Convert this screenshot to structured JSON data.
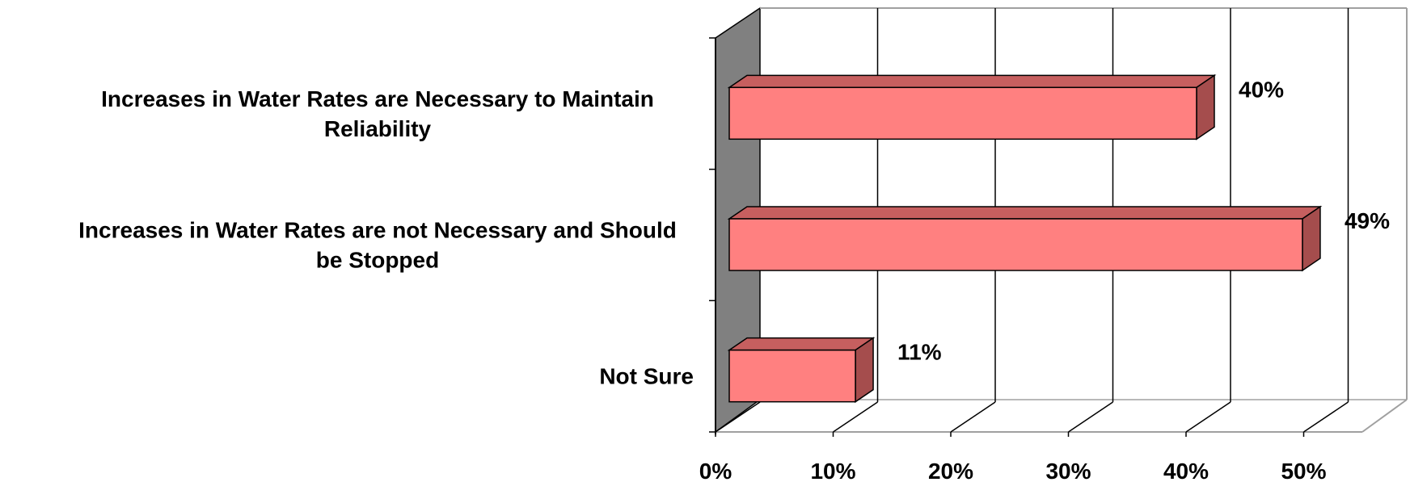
{
  "chart_data": {
    "type": "bar",
    "orientation": "horizontal",
    "three_d": true,
    "categories": [
      "Increases in Water Rates are Necessary to Maintain Reliability",
      "Increases in Water Rates are not Necessary and Should be Stopped",
      "Not Sure"
    ],
    "category_label_lines": [
      [
        "Increases in Water Rates are Necessary to Maintain",
        "Reliability"
      ],
      [
        "Increases in Water Rates are not Necessary and Should",
        "be Stopped"
      ],
      [
        "Not Sure"
      ]
    ],
    "values": [
      40,
      49,
      11
    ],
    "data_labels": [
      "40%",
      "49%",
      "11%"
    ],
    "xlim": [
      0,
      55
    ],
    "ticks": [
      0,
      10,
      20,
      30,
      40,
      50
    ],
    "tick_labels": [
      "0%",
      "10%",
      "20%",
      "30%",
      "40%",
      "50%"
    ],
    "grid": true,
    "legend": "none",
    "colors": {
      "bar_front": "#ff8080",
      "bar_top": "#c65f5f",
      "bar_side": "#a54d4d",
      "side_wall": "#808080",
      "gridline": "#000000",
      "frame": "#a0a0a0"
    }
  }
}
